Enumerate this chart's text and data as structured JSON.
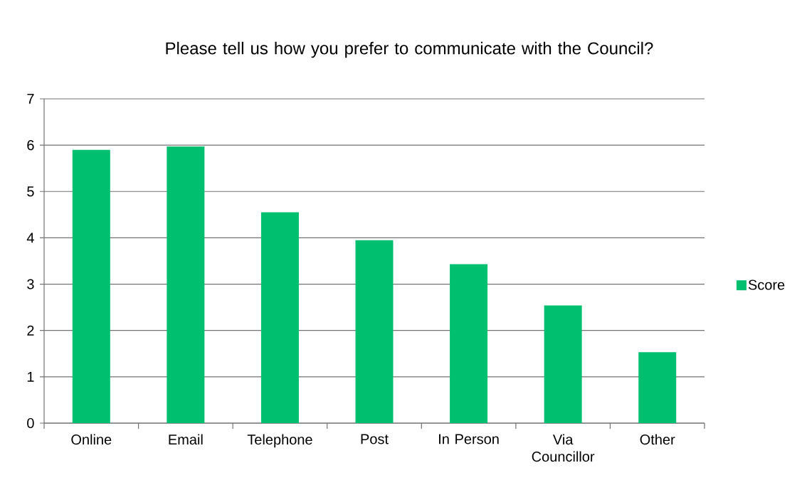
{
  "chart_data": {
    "type": "bar",
    "title": "Please tell us how you prefer to communicate with the Council?",
    "categories": [
      "Online",
      "Email",
      "Telephone",
      "Post",
      "In Person",
      "Via Councillor",
      "Other"
    ],
    "series": [
      {
        "name": "Score",
        "color": "#00bf6f",
        "values": [
          5.9,
          5.97,
          4.55,
          3.95,
          3.43,
          2.54,
          1.53
        ]
      }
    ],
    "ylim": [
      0,
      7
    ],
    "yticks": [
      0,
      1,
      2,
      3,
      4,
      5,
      6,
      7
    ],
    "grid": "y",
    "legend": "right"
  }
}
